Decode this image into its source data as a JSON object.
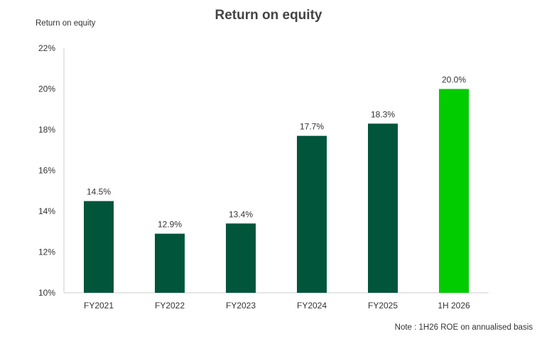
{
  "chart_data": {
    "type": "bar",
    "title": "Return on equity",
    "ylabel": "Return on equity",
    "xlabel": "",
    "categories": [
      "FY2021",
      "FY2022",
      "FY2023",
      "FY2024",
      "FY2025",
      "1H 2026"
    ],
    "values": [
      14.5,
      12.9,
      13.4,
      17.7,
      18.3,
      20.0
    ],
    "data_labels": [
      "14.5%",
      "12.9%",
      "13.4%",
      "17.7%",
      "18.3%",
      "20.0%"
    ],
    "bar_colors": [
      "#00553b",
      "#00553b",
      "#00553b",
      "#00553b",
      "#00553b",
      "#00cc00"
    ],
    "ylim": [
      10,
      22
    ],
    "yticks": [
      10,
      12,
      14,
      16,
      18,
      20,
      22
    ],
    "ytick_labels": [
      "10%",
      "12%",
      "14%",
      "16%",
      "18%",
      "20%",
      "22%"
    ],
    "grid": false,
    "note": "Note : 1H26 ROE on annualised basis"
  }
}
